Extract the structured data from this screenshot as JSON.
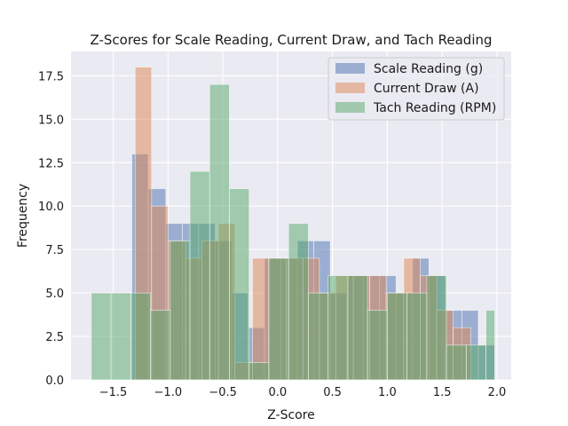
{
  "chart_data": {
    "type": "histogram",
    "title": "Z-Scores for Scale Reading, Current Draw, and Tach Reading",
    "xlabel": "Z-Score",
    "ylabel": "Frequency",
    "xlim": [
      -1.885,
      2.13
    ],
    "ylim": [
      0,
      18.9
    ],
    "xticks": [
      -1.5,
      -1.0,
      -0.5,
      0.0,
      0.5,
      1.0,
      1.5,
      2.0
    ],
    "xtick_labels": [
      "−1.5",
      "−1.0",
      "−0.5",
      "0.0",
      "0.5",
      "1.0",
      "1.5",
      "2.0"
    ],
    "yticks": [
      0,
      2.5,
      5.0,
      7.5,
      10.0,
      12.5,
      15.0,
      17.5
    ],
    "ytick_labels": [
      "0.0",
      "2.5",
      "5.0",
      "7.5",
      "10.0",
      "12.5",
      "15.0",
      "17.5"
    ],
    "grid": true,
    "legend_position": "top-right",
    "series": [
      {
        "name": "Scale Reading (g)",
        "color": "#4c72b0",
        "bins": [
          [
            -1.33,
            -1.18,
            13
          ],
          [
            -1.18,
            -1.02,
            11
          ],
          [
            -1.02,
            -0.87,
            9
          ],
          [
            -0.87,
            -0.72,
            9
          ],
          [
            -0.72,
            -0.57,
            9
          ],
          [
            -0.57,
            -0.42,
            8
          ],
          [
            -0.42,
            -0.27,
            5
          ],
          [
            -0.27,
            -0.12,
            3
          ],
          [
            -0.12,
            0.03,
            7
          ],
          [
            0.03,
            0.18,
            7
          ],
          [
            0.18,
            0.33,
            8
          ],
          [
            0.33,
            0.48,
            8
          ],
          [
            0.48,
            0.63,
            5
          ],
          [
            0.63,
            0.78,
            6
          ],
          [
            0.78,
            0.93,
            6
          ],
          [
            0.93,
            1.08,
            6
          ],
          [
            1.08,
            1.23,
            5
          ],
          [
            1.23,
            1.38,
            7
          ],
          [
            1.38,
            1.53,
            6
          ],
          [
            1.53,
            1.68,
            4
          ],
          [
            1.68,
            1.83,
            4
          ],
          [
            1.83,
            1.98,
            2
          ]
        ]
      },
      {
        "name": "Current Draw (A)",
        "color": "#dd8452",
        "bins": [
          [
            -1.3,
            -1.15,
            18
          ],
          [
            -1.15,
            -1.0,
            10
          ],
          [
            -1.0,
            -0.84,
            8
          ],
          [
            -0.84,
            -0.69,
            7
          ],
          [
            -0.69,
            -0.54,
            8
          ],
          [
            -0.54,
            -0.39,
            9
          ],
          [
            -0.39,
            -0.23,
            1
          ],
          [
            -0.23,
            -0.08,
            7
          ],
          [
            -0.08,
            0.08,
            7
          ],
          [
            0.08,
            0.23,
            7
          ],
          [
            0.23,
            0.38,
            7
          ],
          [
            0.38,
            0.53,
            5
          ],
          [
            0.53,
            0.69,
            6
          ],
          [
            0.69,
            0.84,
            6
          ],
          [
            0.84,
            0.99,
            6
          ],
          [
            0.99,
            1.15,
            5
          ],
          [
            1.15,
            1.3,
            7
          ],
          [
            1.3,
            1.45,
            6
          ],
          [
            1.45,
            1.6,
            4
          ],
          [
            1.6,
            1.76,
            3
          ]
        ]
      },
      {
        "name": "Tach Reading (RPM)",
        "color": "#55a868",
        "bins": [
          [
            -1.7,
            -1.52,
            5
          ],
          [
            -1.52,
            -1.34,
            5
          ],
          [
            -1.34,
            -1.16,
            5
          ],
          [
            -1.16,
            -0.98,
            4
          ],
          [
            -0.98,
            -0.8,
            8
          ],
          [
            -0.8,
            -0.62,
            12
          ],
          [
            -0.62,
            -0.44,
            17
          ],
          [
            -0.44,
            -0.26,
            11
          ],
          [
            -0.26,
            -0.08,
            1
          ],
          [
            -0.08,
            0.1,
            7
          ],
          [
            0.1,
            0.28,
            9
          ],
          [
            0.28,
            0.46,
            5
          ],
          [
            0.46,
            0.64,
            6
          ],
          [
            0.64,
            0.82,
            6
          ],
          [
            0.82,
            1.0,
            4
          ],
          [
            1.0,
            1.18,
            5
          ],
          [
            1.18,
            1.36,
            5
          ],
          [
            1.36,
            1.54,
            6
          ],
          [
            1.54,
            1.72,
            2
          ],
          [
            1.72,
            1.9,
            2
          ],
          [
            1.9,
            1.98,
            4
          ]
        ]
      }
    ]
  }
}
